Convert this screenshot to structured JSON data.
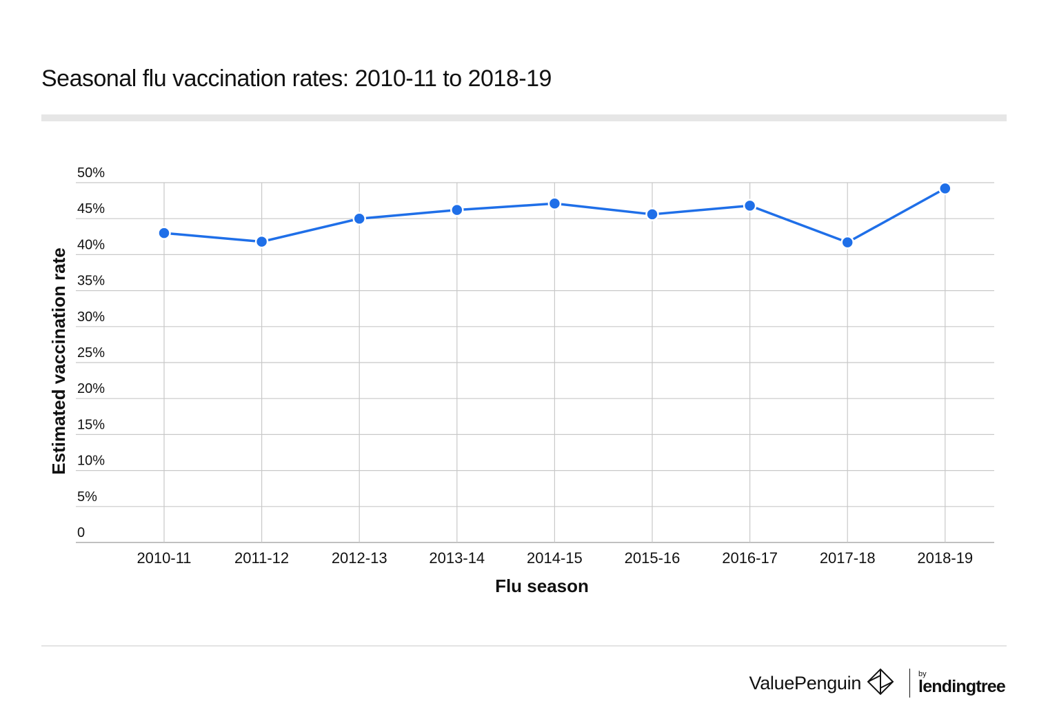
{
  "title": "Seasonal flu vaccination rates: 2010-11 to 2018-19",
  "colors": {
    "series": "#1f6fe8",
    "grid": "#c8c8c8",
    "text": "#111111"
  },
  "footer": {
    "brand": "ValuePenguin",
    "by": "by",
    "partner": "lendingtree"
  },
  "chart_data": {
    "type": "line",
    "title": "Seasonal flu vaccination rates: 2010-11 to 2018-19",
    "xlabel": "Flu season",
    "ylabel": "Estimated vaccination rate",
    "categories": [
      "2010-11",
      "2011-12",
      "2012-13",
      "2013-14",
      "2014-15",
      "2015-16",
      "2016-17",
      "2017-18",
      "2018-19"
    ],
    "series": [
      {
        "name": "Estimated vaccination rate",
        "values": [
          43.0,
          41.8,
          45.0,
          46.2,
          47.1,
          45.6,
          46.8,
          41.7,
          49.2
        ]
      }
    ],
    "ylim": [
      0,
      50
    ],
    "yticks": [
      0,
      5,
      10,
      15,
      20,
      25,
      30,
      35,
      40,
      45,
      50
    ],
    "ytick_labels": [
      "0",
      "5%",
      "10%",
      "15%",
      "20%",
      "25%",
      "30%",
      "35%",
      "40%",
      "45%",
      "50%"
    ],
    "grid": true,
    "legend": "none"
  }
}
